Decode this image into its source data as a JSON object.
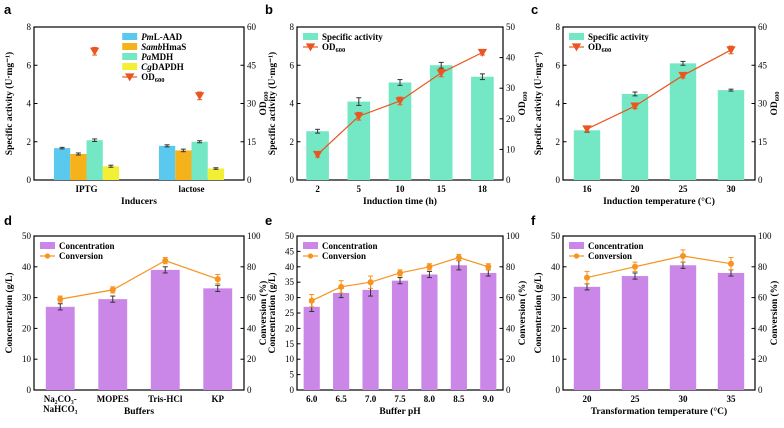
{
  "charts": [
    {
      "id": "a",
      "panel_label": "a",
      "xlabel": "Inducers",
      "ylabel": "Specific activity (U·mg⁻¹)",
      "y2label_main": "OD",
      "y2label_sub": "600",
      "ylim": [
        0,
        8
      ],
      "yticks": [
        "0",
        "2",
        "4",
        "6",
        "8"
      ],
      "y2lim": [
        0,
        60
      ],
      "y2ticks": [
        "0",
        "15",
        "30",
        "45",
        "60"
      ],
      "categories": [
        "IPTG",
        "lactose"
      ],
      "bar_series": [
        {
          "name": "PmL-AAD",
          "name_italic": "Pm",
          "name_rest": "L-AAD",
          "color": "#5bc8ee",
          "values": [
            12.5,
            13.4
          ],
          "errors": [
            0.3,
            0.4
          ]
        },
        {
          "name": "SambHmaS",
          "name_italic": "Samb",
          "name_rest": "HmaS",
          "color": "#f6b21b",
          "values": [
            10.2,
            11.6
          ],
          "errors": [
            0.4,
            0.5
          ]
        },
        {
          "name": "PaMDH",
          "name_italic": "Pa",
          "name_rest": "MDH",
          "color": "#74e8c4",
          "values": [
            15.6,
            15.0
          ],
          "errors": [
            0.5,
            0.4
          ]
        },
        {
          "name": "CgDAPDH",
          "name_italic": "Cg",
          "name_rest": "DAPDH",
          "color": "#f3ef35",
          "values": [
            5.4,
            4.5
          ],
          "errors": [
            0.4,
            0.3
          ]
        }
      ],
      "bar_axis_max": 60,
      "od_series": {
        "name_main": "OD",
        "name_sub": "600",
        "color": "#ea5620",
        "values": [
          50.5,
          33.0
        ],
        "errors": [
          1.5,
          1.5
        ]
      }
    },
    {
      "id": "b",
      "panel_label": "b",
      "xlabel": "Induction time (h)",
      "ylabel": "Specific activity (U·mg⁻¹)",
      "y2label_main": "OD",
      "y2label_sub": "600",
      "ylim": [
        0,
        8
      ],
      "yticks": [
        "0",
        "2",
        "4",
        "6",
        "8"
      ],
      "y2lim": [
        0,
        60
      ],
      "y2ticks": [
        "0",
        "10",
        "20",
        "30",
        "40",
        "50"
      ],
      "categories": [
        "2",
        "5",
        "10",
        "15",
        "18"
      ],
      "bar": {
        "name": "Specific activity",
        "color": "#74e8c4",
        "values": [
          2.55,
          4.1,
          5.1,
          6.0,
          5.4
        ],
        "errors": [
          0.1,
          0.2,
          0.15,
          0.15,
          0.15
        ]
      },
      "line": {
        "name_main": "OD",
        "name_sub": "600",
        "color": "#ea5620",
        "marker": "triangle-down",
        "values": [
          10,
          25,
          31,
          42,
          50
        ],
        "errors": [
          1,
          1.5,
          1.5,
          1.5,
          1
        ]
      }
    },
    {
      "id": "c",
      "panel_label": "c",
      "xlabel": "Induction temperature (°C)",
      "ylabel": "Specific activity (U·mg⁻¹)",
      "y2label_main": "OD",
      "y2label_sub": "600",
      "ylim": [
        0,
        8
      ],
      "yticks": [
        "0",
        "2",
        "4",
        "6",
        "8"
      ],
      "y2lim": [
        0,
        60
      ],
      "y2ticks": [
        "0",
        "15",
        "30",
        "45",
        "60"
      ],
      "categories": [
        "16",
        "20",
        "25",
        "30"
      ],
      "bar": {
        "name": "Specific activity",
        "color": "#74e8c4",
        "values": [
          2.6,
          4.5,
          6.1,
          4.7
        ],
        "errors": [
          0.1,
          0.1,
          0.1,
          0.05
        ]
      },
      "line": {
        "name_main": "OD",
        "name_sub": "600",
        "color": "#ea5620",
        "marker": "triangle-down",
        "values": [
          20,
          29,
          41,
          51
        ],
        "errors": [
          1,
          1,
          1,
          1.5
        ]
      }
    },
    {
      "id": "d",
      "panel_label": "d",
      "xlabel": "Buffers",
      "ylabel": "Concentration (g/L)",
      "y2label": "Conversion (%)",
      "ylim": [
        0,
        50
      ],
      "yticks": [
        "0",
        "10",
        "20",
        "30",
        "40",
        "50"
      ],
      "y2lim": [
        0,
        100
      ],
      "y2ticks": [
        "0",
        "20",
        "40",
        "60",
        "80",
        "100"
      ],
      "categories": [
        "Na₂CO₃-NaHCO₃",
        "MOPES",
        "Tris-HCl",
        "KP"
      ],
      "category_lines": [
        [
          "Na₂CO₃-",
          "NaHCO₃"
        ],
        [
          "MOPES"
        ],
        [
          "Tris-HCl"
        ],
        [
          "KP"
        ]
      ],
      "bar": {
        "name": "Concentration",
        "color": "#cb87e8",
        "values": [
          27.0,
          29.5,
          39.0,
          33.0
        ],
        "errors": [
          1.0,
          1.0,
          1.0,
          1.0
        ]
      },
      "line": {
        "name": "Conversion",
        "color": "#f7931e",
        "marker": "circle",
        "values": [
          59,
          65,
          84,
          72
        ],
        "errors": [
          2,
          2,
          2,
          3
        ]
      }
    },
    {
      "id": "e",
      "panel_label": "e",
      "xlabel": "Buffer pH",
      "ylabel": "Concentration (g/L)",
      "y2label": "Conversion (%)",
      "ylim": [
        0,
        50
      ],
      "yticks": [
        "0",
        "5",
        "10",
        "15",
        "20",
        "25",
        "30",
        "35",
        "40",
        "45",
        "50"
      ],
      "y2lim": [
        0,
        100
      ],
      "y2ticks": [
        "0",
        "20",
        "40",
        "60",
        "80",
        "100"
      ],
      "categories": [
        "6.0",
        "6.5",
        "7.0",
        "7.5",
        "8.0",
        "8.5",
        "9.0"
      ],
      "bar": {
        "name": "Concentration",
        "color": "#cb87e8",
        "values": [
          27.0,
          31.5,
          32.5,
          35.5,
          37.5,
          40.5,
          38.0
        ],
        "errors": [
          1.5,
          1.5,
          2.0,
          1.0,
          1.0,
          1.5,
          1.0
        ]
      },
      "line": {
        "name": "Conversion",
        "color": "#f7931e",
        "marker": "circle",
        "values": [
          58,
          67,
          70,
          76,
          80,
          86,
          80
        ],
        "errors": [
          4,
          4,
          4,
          2,
          2,
          2,
          2
        ]
      }
    },
    {
      "id": "f",
      "panel_label": "f",
      "xlabel": "Transformation temperature (°C)",
      "ylabel": "Concentration (g/L)",
      "y2label": "Conversion (%)",
      "ylim": [
        0,
        50
      ],
      "yticks": [
        "0",
        "10",
        "20",
        "30",
        "40",
        "50"
      ],
      "y2lim": [
        0,
        100
      ],
      "y2ticks": [
        "0",
        "20",
        "40",
        "60",
        "80",
        "100"
      ],
      "categories": [
        "20",
        "25",
        "30",
        "35"
      ],
      "bar": {
        "name": "Concentration",
        "color": "#cb87e8",
        "values": [
          33.5,
          37.0,
          40.5,
          38.0
        ],
        "errors": [
          1.0,
          1.0,
          1.0,
          1.0
        ]
      },
      "line": {
        "name": "Conversion",
        "color": "#f7931e",
        "marker": "circle",
        "values": [
          73,
          80,
          87,
          82
        ],
        "errors": [
          4,
          3,
          4,
          4
        ]
      }
    }
  ]
}
